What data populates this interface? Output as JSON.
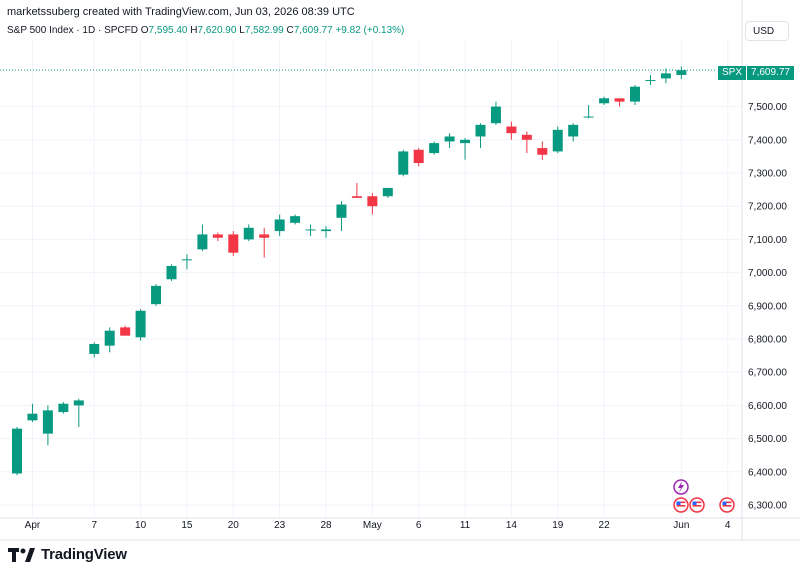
{
  "header": {
    "created_by": "marketssuberg created with TradingView.com, Jun 03, 2026 08:39 UTC"
  },
  "symbol_line": {
    "name": "S&P 500 Index · 1D · SPCFD",
    "o_label": "O",
    "o": "7,595.40",
    "h_label": "H",
    "h": "7,620.90",
    "l_label": "L",
    "l": "7,582.99",
    "c_label": "C",
    "c": "7,609.77",
    "change": "+9.82 (+0.13%)"
  },
  "currency_button": "USD",
  "price_tag": {
    "symbol": "SPX",
    "price": "7,609.77"
  },
  "brand": "TradingView",
  "colors": {
    "up": "#089981",
    "down": "#f23645",
    "grid": "#f0f3fa",
    "axis_text": "#131722"
  },
  "event_icons": [
    "lightning-icon",
    "us-flag-icon",
    "us-flag-icon",
    "us-flag-icon"
  ],
  "chart_data": {
    "type": "candlestick",
    "title": "S&P 500 Index",
    "interval": "1D",
    "last_price": 7609.77,
    "ylim": [
      6270,
      7650
    ],
    "y_ticks": [
      6300,
      6400,
      6500,
      6600,
      6700,
      6800,
      6900,
      7000,
      7100,
      7200,
      7300,
      7400,
      7500
    ],
    "y_tick_labels": [
      "6,300.00",
      "6,400.00",
      "6,500.00",
      "6,600.00",
      "6,700.00",
      "6,800.00",
      "6,900.00",
      "7,000.00",
      "7,100.00",
      "7,200.00",
      "7,300.00",
      "7,400.00",
      "7,500.00"
    ],
    "x_ticks": [
      {
        "label": "Apr",
        "index": 1
      },
      {
        "label": "7",
        "index": 5
      },
      {
        "label": "10",
        "index": 8
      },
      {
        "label": "15",
        "index": 11
      },
      {
        "label": "20",
        "index": 14
      },
      {
        "label": "23",
        "index": 17
      },
      {
        "label": "28",
        "index": 20
      },
      {
        "label": "May",
        "index": 23
      },
      {
        "label": "6",
        "index": 26
      },
      {
        "label": "11",
        "index": 29
      },
      {
        "label": "14",
        "index": 32
      },
      {
        "label": "19",
        "index": 35
      },
      {
        "label": "22",
        "index": 38
      },
      {
        "label": "Jun",
        "index": 43
      },
      {
        "label": "4",
        "index": 46
      }
    ],
    "candles": [
      {
        "o": 6395,
        "h": 6535,
        "l": 6390,
        "c": 6530
      },
      {
        "o": 6555,
        "h": 6605,
        "l": 6550,
        "c": 6575
      },
      {
        "o": 6515,
        "h": 6600,
        "l": 6480,
        "c": 6585
      },
      {
        "o": 6580,
        "h": 6610,
        "l": 6575,
        "c": 6605
      },
      {
        "o": 6600,
        "h": 6620,
        "l": 6535,
        "c": 6615
      },
      {
        "o": 6755,
        "h": 6790,
        "l": 6745,
        "c": 6785
      },
      {
        "o": 6780,
        "h": 6835,
        "l": 6760,
        "c": 6825
      },
      {
        "o": 6835,
        "h": 6840,
        "l": 6810,
        "c": 6810
      },
      {
        "o": 6805,
        "h": 6890,
        "l": 6795,
        "c": 6885
      },
      {
        "o": 6905,
        "h": 6965,
        "l": 6900,
        "c": 6960
      },
      {
        "o": 6980,
        "h": 7025,
        "l": 6975,
        "c": 7020
      },
      {
        "o": 7040,
        "h": 7055,
        "l": 7010,
        "c": 7040
      },
      {
        "o": 7070,
        "h": 7145,
        "l": 7065,
        "c": 7115
      },
      {
        "o": 7115,
        "h": 7120,
        "l": 7095,
        "c": 7105
      },
      {
        "o": 7115,
        "h": 7125,
        "l": 7050,
        "c": 7060
      },
      {
        "o": 7100,
        "h": 7145,
        "l": 7095,
        "c": 7135
      },
      {
        "o": 7115,
        "h": 7135,
        "l": 7045,
        "c": 7105
      },
      {
        "o": 7125,
        "h": 7175,
        "l": 7110,
        "c": 7160
      },
      {
        "o": 7150,
        "h": 7175,
        "l": 7145,
        "c": 7170
      },
      {
        "o": 7130,
        "h": 7145,
        "l": 7110,
        "c": 7130
      },
      {
        "o": 7125,
        "h": 7140,
        "l": 7105,
        "c": 7130
      },
      {
        "o": 7165,
        "h": 7215,
        "l": 7125,
        "c": 7205
      },
      {
        "o": 7230,
        "h": 7270,
        "l": 7225,
        "c": 7225
      },
      {
        "o": 7230,
        "h": 7240,
        "l": 7175,
        "c": 7200
      },
      {
        "o": 7230,
        "h": 7255,
        "l": 7225,
        "c": 7255
      },
      {
        "o": 7295,
        "h": 7370,
        "l": 7290,
        "c": 7365
      },
      {
        "o": 7370,
        "h": 7375,
        "l": 7320,
        "c": 7330
      },
      {
        "o": 7360,
        "h": 7395,
        "l": 7355,
        "c": 7390
      },
      {
        "o": 7395,
        "h": 7420,
        "l": 7375,
        "c": 7410
      },
      {
        "o": 7390,
        "h": 7405,
        "l": 7340,
        "c": 7400
      },
      {
        "o": 7410,
        "h": 7450,
        "l": 7375,
        "c": 7445
      },
      {
        "o": 7450,
        "h": 7515,
        "l": 7445,
        "c": 7500
      },
      {
        "o": 7440,
        "h": 7455,
        "l": 7400,
        "c": 7420
      },
      {
        "o": 7415,
        "h": 7425,
        "l": 7360,
        "c": 7400
      },
      {
        "o": 7375,
        "h": 7395,
        "l": 7340,
        "c": 7355
      },
      {
        "o": 7365,
        "h": 7440,
        "l": 7360,
        "c": 7430
      },
      {
        "o": 7410,
        "h": 7450,
        "l": 7395,
        "c": 7445
      },
      {
        "o": 7470,
        "h": 7505,
        "l": 7465,
        "c": 7470
      },
      {
        "o": 7510,
        "h": 7530,
        "l": 7505,
        "c": 7525
      },
      {
        "o": 7525,
        "h": 7525,
        "l": 7500,
        "c": 7515
      },
      {
        "o": 7515,
        "h": 7565,
        "l": 7505,
        "c": 7560
      },
      {
        "o": 7580,
        "h": 7595,
        "l": 7565,
        "c": 7580
      },
      {
        "o": 7585,
        "h": 7615,
        "l": 7570,
        "c": 7600
      },
      {
        "o": 7595.4,
        "h": 7620.9,
        "l": 7582.99,
        "c": 7609.77
      }
    ]
  }
}
